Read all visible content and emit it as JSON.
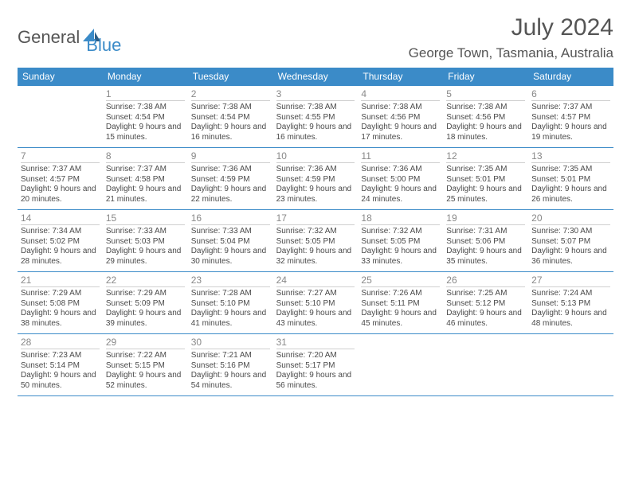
{
  "brand": {
    "part1": "General",
    "part2": "Blue"
  },
  "title": "July 2024",
  "location": "George Town, Tasmania, Australia",
  "colors": {
    "brand_blue": "#3b8bc8",
    "header_blue": "#3b8bc8",
    "text_dark": "#333333",
    "text_gray": "#4a4a4a",
    "daynum_gray": "#888888",
    "divider": "#3b8bc8",
    "background": "#ffffff"
  },
  "days_of_week": [
    "Sunday",
    "Monday",
    "Tuesday",
    "Wednesday",
    "Thursday",
    "Friday",
    "Saturday"
  ],
  "weeks": [
    [
      null,
      {
        "n": "1",
        "sr": "7:38 AM",
        "ss": "4:54 PM",
        "dl": "9 hours and 15 minutes."
      },
      {
        "n": "2",
        "sr": "7:38 AM",
        "ss": "4:54 PM",
        "dl": "9 hours and 16 minutes."
      },
      {
        "n": "3",
        "sr": "7:38 AM",
        "ss": "4:55 PM",
        "dl": "9 hours and 16 minutes."
      },
      {
        "n": "4",
        "sr": "7:38 AM",
        "ss": "4:56 PM",
        "dl": "9 hours and 17 minutes."
      },
      {
        "n": "5",
        "sr": "7:38 AM",
        "ss": "4:56 PM",
        "dl": "9 hours and 18 minutes."
      },
      {
        "n": "6",
        "sr": "7:37 AM",
        "ss": "4:57 PM",
        "dl": "9 hours and 19 minutes."
      }
    ],
    [
      {
        "n": "7",
        "sr": "7:37 AM",
        "ss": "4:57 PM",
        "dl": "9 hours and 20 minutes."
      },
      {
        "n": "8",
        "sr": "7:37 AM",
        "ss": "4:58 PM",
        "dl": "9 hours and 21 minutes."
      },
      {
        "n": "9",
        "sr": "7:36 AM",
        "ss": "4:59 PM",
        "dl": "9 hours and 22 minutes."
      },
      {
        "n": "10",
        "sr": "7:36 AM",
        "ss": "4:59 PM",
        "dl": "9 hours and 23 minutes."
      },
      {
        "n": "11",
        "sr": "7:36 AM",
        "ss": "5:00 PM",
        "dl": "9 hours and 24 minutes."
      },
      {
        "n": "12",
        "sr": "7:35 AM",
        "ss": "5:01 PM",
        "dl": "9 hours and 25 minutes."
      },
      {
        "n": "13",
        "sr": "7:35 AM",
        "ss": "5:01 PM",
        "dl": "9 hours and 26 minutes."
      }
    ],
    [
      {
        "n": "14",
        "sr": "7:34 AM",
        "ss": "5:02 PM",
        "dl": "9 hours and 28 minutes."
      },
      {
        "n": "15",
        "sr": "7:33 AM",
        "ss": "5:03 PM",
        "dl": "9 hours and 29 minutes."
      },
      {
        "n": "16",
        "sr": "7:33 AM",
        "ss": "5:04 PM",
        "dl": "9 hours and 30 minutes."
      },
      {
        "n": "17",
        "sr": "7:32 AM",
        "ss": "5:05 PM",
        "dl": "9 hours and 32 minutes."
      },
      {
        "n": "18",
        "sr": "7:32 AM",
        "ss": "5:05 PM",
        "dl": "9 hours and 33 minutes."
      },
      {
        "n": "19",
        "sr": "7:31 AM",
        "ss": "5:06 PM",
        "dl": "9 hours and 35 minutes."
      },
      {
        "n": "20",
        "sr": "7:30 AM",
        "ss": "5:07 PM",
        "dl": "9 hours and 36 minutes."
      }
    ],
    [
      {
        "n": "21",
        "sr": "7:29 AM",
        "ss": "5:08 PM",
        "dl": "9 hours and 38 minutes."
      },
      {
        "n": "22",
        "sr": "7:29 AM",
        "ss": "5:09 PM",
        "dl": "9 hours and 39 minutes."
      },
      {
        "n": "23",
        "sr": "7:28 AM",
        "ss": "5:10 PM",
        "dl": "9 hours and 41 minutes."
      },
      {
        "n": "24",
        "sr": "7:27 AM",
        "ss": "5:10 PM",
        "dl": "9 hours and 43 minutes."
      },
      {
        "n": "25",
        "sr": "7:26 AM",
        "ss": "5:11 PM",
        "dl": "9 hours and 45 minutes."
      },
      {
        "n": "26",
        "sr": "7:25 AM",
        "ss": "5:12 PM",
        "dl": "9 hours and 46 minutes."
      },
      {
        "n": "27",
        "sr": "7:24 AM",
        "ss": "5:13 PM",
        "dl": "9 hours and 48 minutes."
      }
    ],
    [
      {
        "n": "28",
        "sr": "7:23 AM",
        "ss": "5:14 PM",
        "dl": "9 hours and 50 minutes."
      },
      {
        "n": "29",
        "sr": "7:22 AM",
        "ss": "5:15 PM",
        "dl": "9 hours and 52 minutes."
      },
      {
        "n": "30",
        "sr": "7:21 AM",
        "ss": "5:16 PM",
        "dl": "9 hours and 54 minutes."
      },
      {
        "n": "31",
        "sr": "7:20 AM",
        "ss": "5:17 PM",
        "dl": "9 hours and 56 minutes."
      },
      null,
      null,
      null
    ]
  ],
  "labels": {
    "sunrise": "Sunrise:",
    "sunset": "Sunset:",
    "daylight": "Daylight:"
  }
}
